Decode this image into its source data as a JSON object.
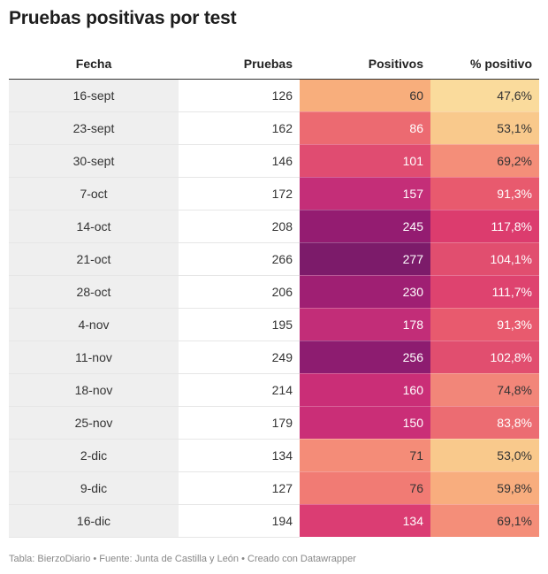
{
  "title": "Pruebas positivas por test",
  "footer": "Tabla: BierzoDiario • Fuente: Junta de Castilla y León • Creado con Datawrapper",
  "chart_data": {
    "type": "table",
    "title": "Pruebas positivas por test",
    "columns": [
      "Fecha",
      "Pruebas",
      "Positivos",
      "% positivo"
    ],
    "rows": [
      {
        "fecha": "16-sept",
        "pruebas": "126",
        "positivos": "60",
        "pct": "47,6%",
        "pos_color": "#f8ae7c",
        "pct_color": "#fadb9c"
      },
      {
        "fecha": "23-sept",
        "pruebas": "162",
        "positivos": "86",
        "pct": "53,1%",
        "pos_color": "#ec6a71",
        "pct_color": "#f9c98c"
      },
      {
        "fecha": "30-sept",
        "pruebas": "146",
        "positivos": "101",
        "pct": "69,2%",
        "pos_color": "#e04c71",
        "pct_color": "#f48e79"
      },
      {
        "fecha": "7-oct",
        "pruebas": "172",
        "positivos": "157",
        "pct": "91,3%",
        "pos_color": "#c42e78",
        "pct_color": "#e85a6e"
      },
      {
        "fecha": "14-oct",
        "pruebas": "208",
        "positivos": "245",
        "pct": "117,8%",
        "pos_color": "#941c71",
        "pct_color": "#dc3c6e"
      },
      {
        "fecha": "21-oct",
        "pruebas": "266",
        "positivos": "277",
        "pct": "104,1%",
        "pos_color": "#7c1b6a",
        "pct_color": "#e14e6f"
      },
      {
        "fecha": "28-oct",
        "pruebas": "206",
        "positivos": "230",
        "pct": "111,7%",
        "pos_color": "#9f1f73",
        "pct_color": "#de436f"
      },
      {
        "fecha": "4-nov",
        "pruebas": "195",
        "positivos": "178",
        "pct": "91,3%",
        "pos_color": "#c22d78",
        "pct_color": "#e85a6e"
      },
      {
        "fecha": "11-nov",
        "pruebas": "249",
        "positivos": "256",
        "pct": "102,8%",
        "pos_color": "#8d1c70",
        "pct_color": "#e14e6f"
      },
      {
        "fecha": "18-nov",
        "pruebas": "214",
        "positivos": "160",
        "pct": "74,8%",
        "pos_color": "#ca2e77",
        "pct_color": "#f28679"
      },
      {
        "fecha": "25-nov",
        "pruebas": "179",
        "positivos": "150",
        "pct": "83,8%",
        "pos_color": "#ca2e77",
        "pct_color": "#ec6c72"
      },
      {
        "fecha": "2-dic",
        "pruebas": "134",
        "positivos": "71",
        "pct": "53,0%",
        "pos_color": "#f48c78",
        "pct_color": "#f9c98c"
      },
      {
        "fecha": "9-dic",
        "pruebas": "127",
        "positivos": "76",
        "pct": "59,8%",
        "pos_color": "#f17b74",
        "pct_color": "#f8ad7e"
      },
      {
        "fecha": "16-dic",
        "pruebas": "194",
        "positivos": "134",
        "pct": "69,1%",
        "pos_color": "#db3d73",
        "pct_color": "#f48e79"
      }
    ]
  }
}
